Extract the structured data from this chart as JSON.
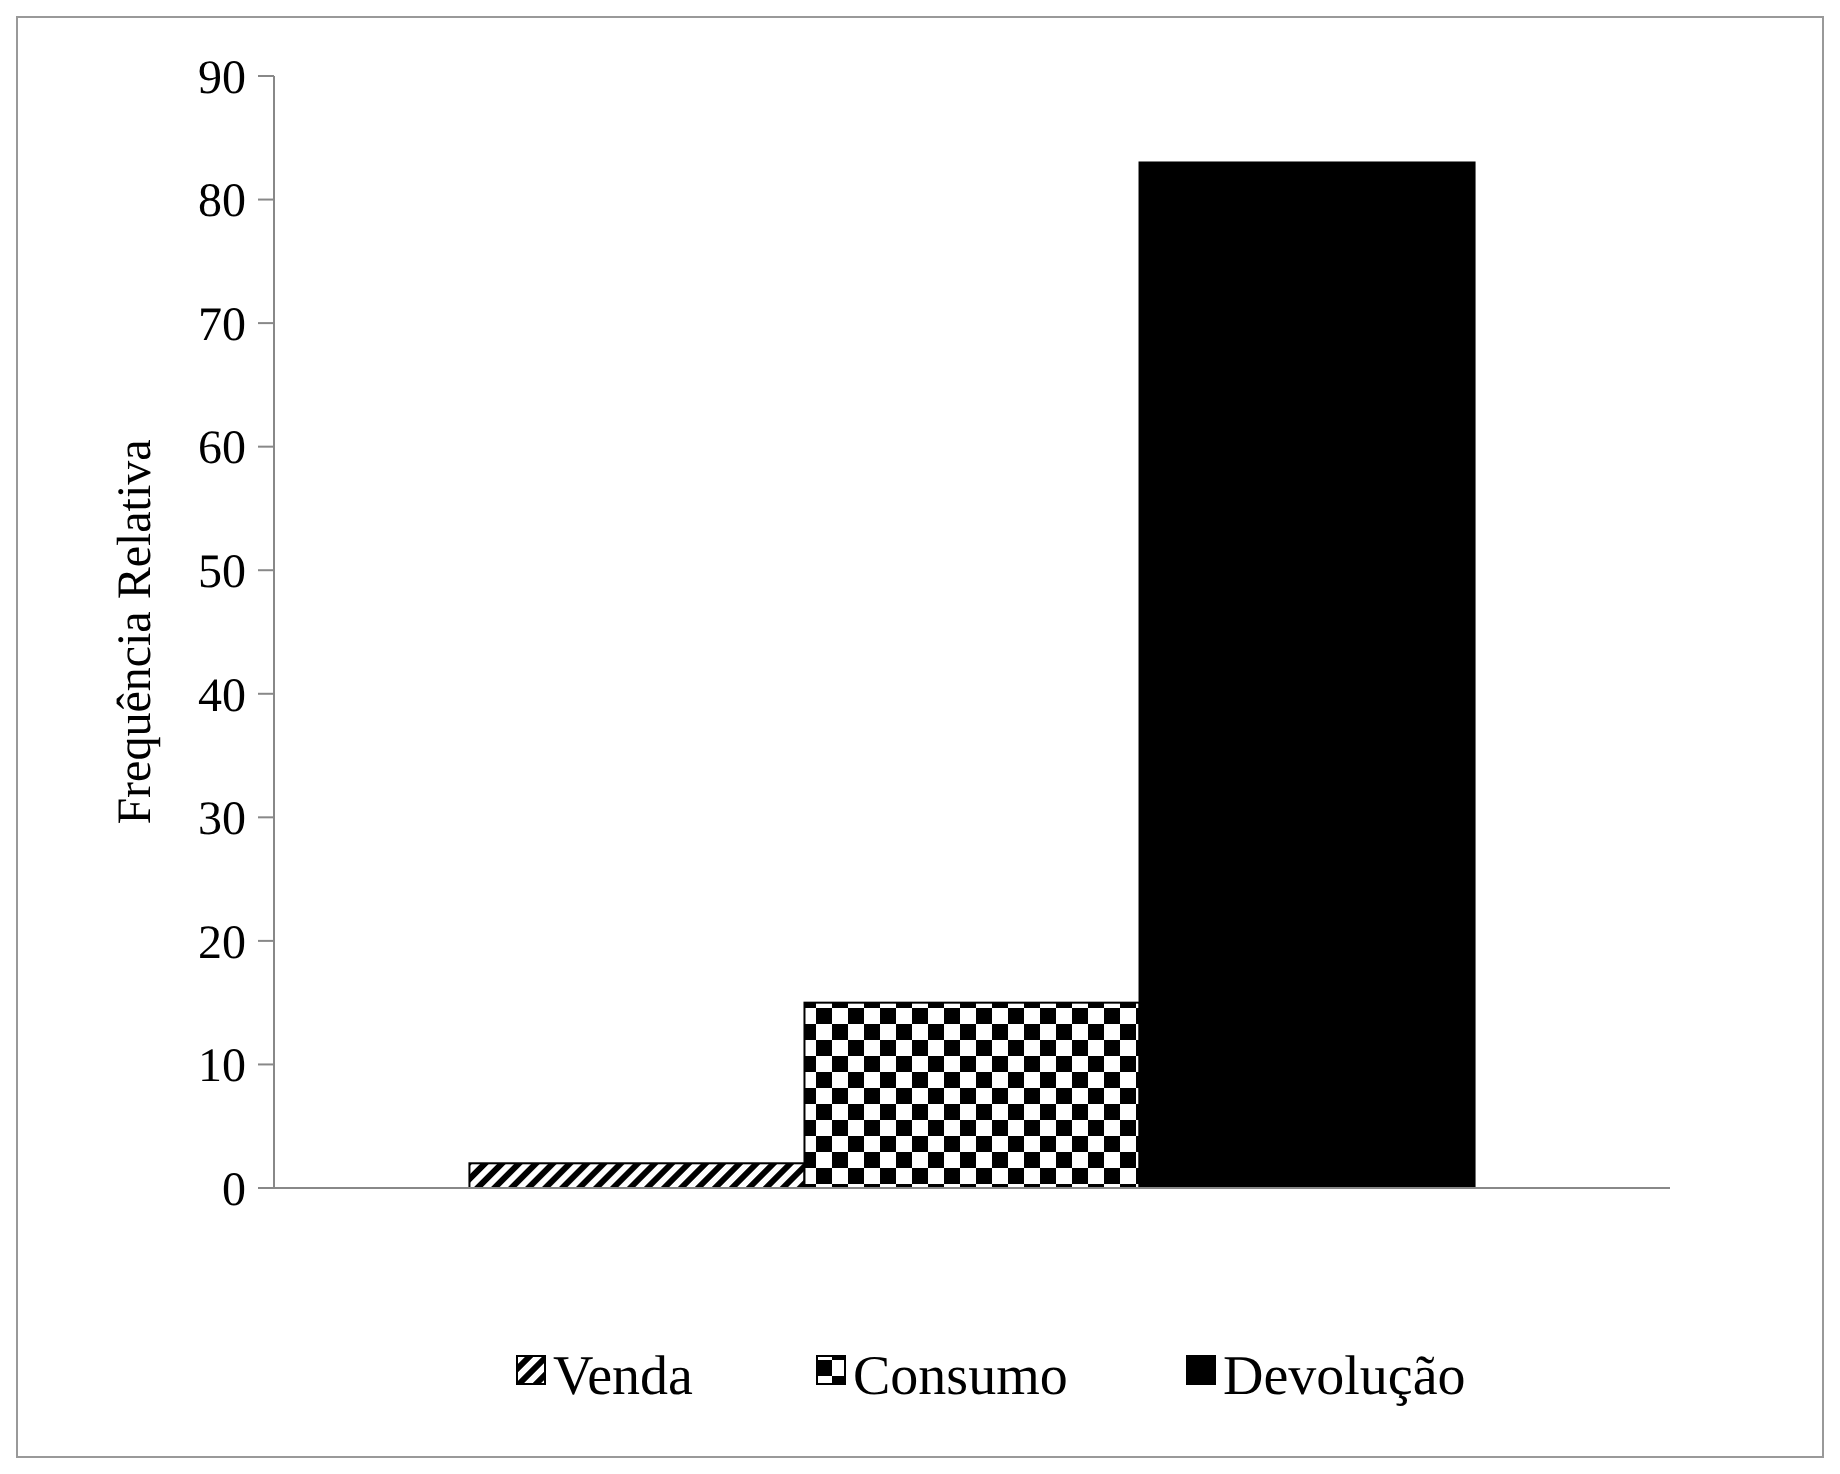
{
  "chart_data": {
    "type": "bar",
    "ylabel": "Frequência Relativa",
    "categories": [
      null
    ],
    "series": [
      {
        "name": "Venda",
        "color": "#000000",
        "values": [
          2
        ]
      },
      {
        "name": "Consumo",
        "color": "#000000",
        "values": [
          15
        ]
      },
      {
        "name": "Devolução",
        "color": "#000000",
        "values": [
          83
        ]
      }
    ],
    "ylim": [
      0,
      90
    ],
    "yticks": [
      0,
      10,
      20,
      30,
      40,
      50,
      60,
      70,
      80,
      90
    ],
    "grid": false,
    "legend": "bottom"
  }
}
